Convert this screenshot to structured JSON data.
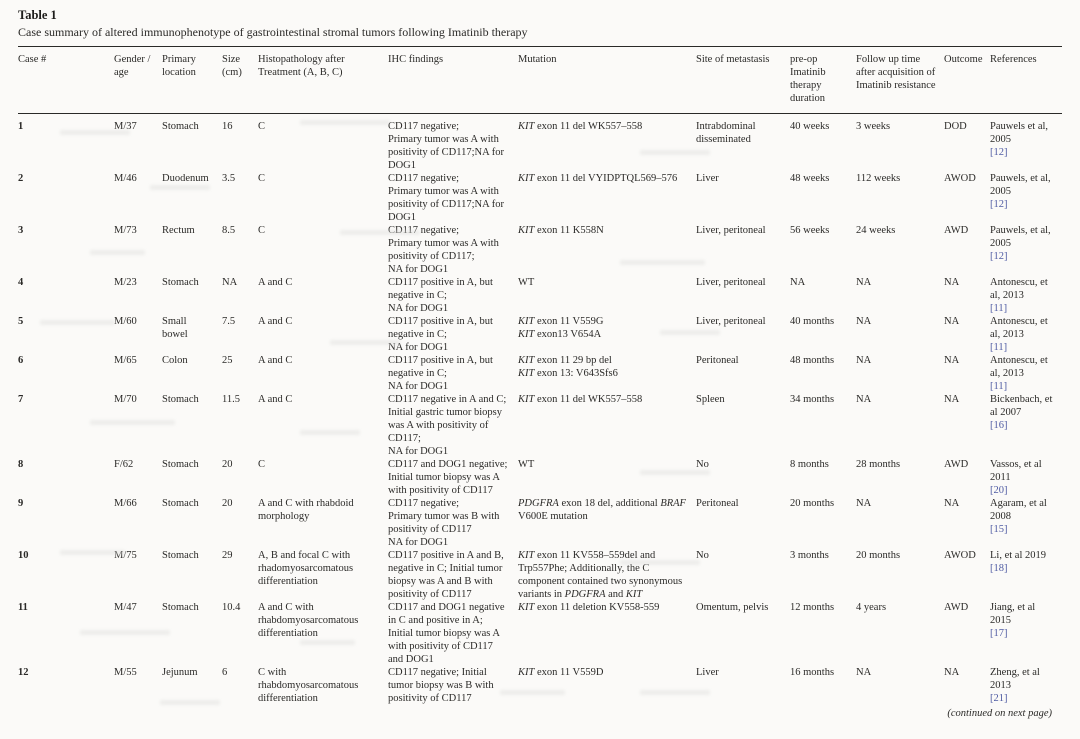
{
  "table": {
    "label": "Table 1",
    "caption": "Case summary of altered immunophenotype of gastrointestinal stromal tumors following Imatinib therapy",
    "continued_note": "(continued on next page)",
    "citation_color": "#4f5ba3",
    "italic_genes": [
      "PDGFRA",
      "BRAF",
      "KIT"
    ],
    "columns": [
      "Case #",
      "Gender / age",
      "Primary location",
      "Size (cm)",
      "Histopathology after Treatment (A, B, C)",
      "IHC findings",
      "Mutation",
      "Site of metastasis",
      "pre-op Imatinib therapy duration",
      "Follow up time after acquisition of Imatinib resistance",
      "Outcome",
      "References"
    ],
    "rows": [
      {
        "case": "1",
        "gender_age": "M/37",
        "location": "Stomach",
        "size": "16",
        "histopathology": "C",
        "ihc": [
          "CD117 negative;",
          "Primary tumor was A with positivity of CD117;NA for DOG1"
        ],
        "mutation": [
          "KIT exon 11 del WK557–558"
        ],
        "metastasis": "Intrabdominal disseminated",
        "preop": "40 weeks",
        "followup": "3 weeks",
        "outcome": "DOD",
        "reference": "Pauwels et al, 2005",
        "cite": "[12]"
      },
      {
        "case": "2",
        "gender_age": "M/46",
        "location": "Duodenum",
        "size": "3.5",
        "histopathology": "C",
        "ihc": [
          "CD117 negative;",
          "Primary tumor was A with positivity of CD117;NA for DOG1"
        ],
        "mutation": [
          "KIT exon 11 del VYIDPTQL569–576"
        ],
        "metastasis": "Liver",
        "preop": "48 weeks",
        "followup": "112 weeks",
        "outcome": "AWOD",
        "reference": "Pauwels, et al, 2005",
        "cite": "[12]"
      },
      {
        "case": "3",
        "gender_age": "M/73",
        "location": "Rectum",
        "size": "8.5",
        "histopathology": "C",
        "ihc": [
          "CD117 negative;",
          "Primary tumor was A with positivity of CD117;",
          "NA for DOG1"
        ],
        "mutation": [
          "KIT exon 11 K558N"
        ],
        "metastasis": "Liver, peritoneal",
        "preop": "56 weeks",
        "followup": "24 weeks",
        "outcome": "AWD",
        "reference": "Pauwels, et al, 2005",
        "cite": "[12]"
      },
      {
        "case": "4",
        "gender_age": "M/23",
        "location": "Stomach",
        "size": "NA",
        "histopathology": "A and C",
        "ihc": [
          "CD117 positive in A, but negative in C;",
          "NA for DOG1"
        ],
        "mutation": [
          "WT"
        ],
        "metastasis": "Liver, peritoneal",
        "preop": "NA",
        "followup": "NA",
        "outcome": "NA",
        "reference": "Antonescu, et al, 2013",
        "cite": "[11]"
      },
      {
        "case": "5",
        "gender_age": "M/60",
        "location": "Small bowel",
        "size": "7.5",
        "histopathology": "A and C",
        "ihc": [
          "CD117 positive in A, but negative in C;",
          "NA for DOG1"
        ],
        "mutation": [
          "KIT exon 11 V559G",
          "KIT exon13 V654A"
        ],
        "metastasis": "Liver, peritoneal",
        "preop": "40 months",
        "followup": "NA",
        "outcome": "NA",
        "reference": "Antonescu, et al, 2013",
        "cite": "[11]"
      },
      {
        "case": "6",
        "gender_age": "M/65",
        "location": "Colon",
        "size": "25",
        "histopathology": "A and C",
        "ihc": [
          "CD117 positive in A, but negative in C;",
          "NA for DOG1"
        ],
        "mutation": [
          "KIT exon 11 29 bp del",
          "KIT exon 13: V643Sfs6"
        ],
        "metastasis": "Peritoneal",
        "preop": "48 months",
        "followup": "NA",
        "outcome": "NA",
        "reference": "Antonescu, et al, 2013",
        "cite": "[11]"
      },
      {
        "case": "7",
        "gender_age": "M/70",
        "location": "Stomach",
        "size": "11.5",
        "histopathology": "A and C",
        "ihc": [
          "CD117 negative in A and C; Initial gastric tumor biopsy was A with positivity of CD117;",
          "NA for DOG1"
        ],
        "mutation": [
          "KIT exon 11 del WK557–558"
        ],
        "metastasis": "Spleen",
        "preop": "34 months",
        "followup": "NA",
        "outcome": "NA",
        "reference": "Bickenbach, et al 2007",
        "cite": "[16]"
      },
      {
        "case": "8",
        "gender_age": "F/62",
        "location": "Stomach",
        "size": "20",
        "histopathology": "C",
        "ihc": [
          "CD117 and DOG1 negative; Initial tumor biopsy was A with positivity of CD117"
        ],
        "mutation": [
          "WT"
        ],
        "metastasis": "No",
        "preop": "8 months",
        "followup": "28 months",
        "outcome": "AWD",
        "reference": "Vassos, et al 2011",
        "cite": "[20]"
      },
      {
        "case": "9",
        "gender_age": "M/66",
        "location": "Stomach",
        "size": "20",
        "histopathology": "A and C with rhabdoid morphology",
        "ihc": [
          "CD117 negative;",
          "Primary tumor was B with positivity of CD117",
          "NA for DOG1"
        ],
        "mutation": [
          "PDGFRA exon 18 del, additional BRAF V600E mutation"
        ],
        "metastasis": "Peritoneal",
        "preop": "20 months",
        "followup": "NA",
        "outcome": "NA",
        "reference": "Agaram, et al 2008",
        "cite": "[15]"
      },
      {
        "case": "10",
        "gender_age": "M/75",
        "location": "Stomach",
        "size": "29",
        "histopathology": "A, B and focal C with rhadomyosarcomatous differentiation",
        "ihc": [
          "CD117 positive in A and B, negative in C; Initial tumor biopsy was A and B with positivity of CD117"
        ],
        "mutation": [
          "KIT exon 11 KV558–559del and Trp557Phe; Additionally, the C component contained two synonymous variants in PDGFRA and KIT"
        ],
        "metastasis": "No",
        "preop": "3 months",
        "followup": "20 months",
        "outcome": "AWOD",
        "reference": "Li, et al 2019",
        "cite": "[18]"
      },
      {
        "case": "11",
        "gender_age": "M/47",
        "location": "Stomach",
        "size": "10.4",
        "histopathology": "A and C with rhabdomyosarcomatous differentiation",
        "ihc": [
          "CD117 and DOG1 negative in C and positive in A; Initial tumor biopsy was A with positivity of CD117 and DOG1"
        ],
        "mutation": [
          "KIT exon 11 deletion KV558-559"
        ],
        "metastasis": "Omentum, pelvis",
        "preop": "12 months",
        "followup": "4 years",
        "outcome": "AWD",
        "reference": "Jiang, et al 2015",
        "cite": "[17]"
      },
      {
        "case": "12",
        "gender_age": "M/55",
        "location": "Jejunum",
        "size": "6",
        "histopathology": "C with rhabdomyosarcomatous differentiation",
        "ihc": [
          "CD117 negative; Initial tumor biopsy was B with positivity of CD117"
        ],
        "mutation": [
          "KIT exon 11 V559D"
        ],
        "metastasis": "Liver",
        "preop": "16 months",
        "followup": "NA",
        "outcome": "NA",
        "reference": "Zheng, et al 2013",
        "cite": "[21]"
      }
    ]
  }
}
